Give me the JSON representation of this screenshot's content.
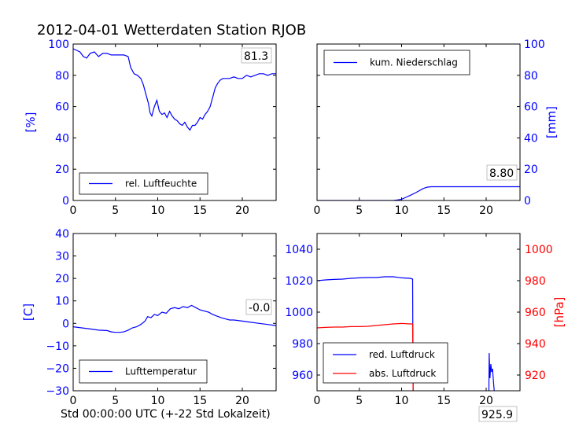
{
  "title": "2012-04-01 Wetterdaten Station RJOB",
  "x_caption": "Std 00:00:00 UTC (+-22 Std Lokalzeit)",
  "colors": {
    "axis_text": "#0000ff",
    "blue": "#0000ff",
    "red": "#ff0000",
    "frame": "#000000"
  },
  "chart_data": [
    {
      "type": "line",
      "ylabel": "[%]",
      "xlim": [
        0,
        24
      ],
      "ylim": [
        0,
        100
      ],
      "xticks": [
        0,
        5,
        10,
        15,
        20
      ],
      "yticks": [
        0,
        20,
        40,
        60,
        80,
        100
      ],
      "legend": {
        "position": "lower-left",
        "entries": [
          {
            "label": "rel. Luftfeuchte",
            "color": "#0000ff"
          }
        ]
      },
      "annotation": "81.3",
      "series": [
        {
          "name": "rel. Luftfeuchte",
          "color": "#0000ff",
          "x": [
            0,
            0.4,
            0.8,
            1.2,
            1.6,
            2.0,
            2.5,
            3.0,
            3.5,
            4.0,
            4.5,
            5.0,
            5.5,
            6.0,
            6.5,
            6.8,
            7.2,
            7.6,
            8.0,
            8.3,
            8.6,
            8.9,
            9.1,
            9.3,
            9.6,
            9.9,
            10.2,
            10.5,
            10.8,
            11.1,
            11.4,
            11.7,
            12.0,
            12.3,
            12.6,
            12.9,
            13.2,
            13.5,
            13.8,
            14.1,
            14.4,
            14.7,
            15.0,
            15.3,
            15.6,
            15.9,
            16.2,
            16.5,
            16.8,
            17.1,
            17.4,
            17.7,
            18.0,
            18.5,
            19.0,
            19.5,
            20.0,
            20.5,
            21.0,
            21.5,
            22.0,
            22.5,
            23.0,
            23.5,
            24.0
          ],
          "y": [
            97,
            96,
            95,
            92,
            91,
            94,
            95,
            92,
            94,
            94,
            93,
            93,
            93,
            93,
            92,
            85,
            81,
            80,
            78,
            74,
            68,
            62,
            56,
            54,
            60,
            64,
            57,
            55,
            56,
            53,
            57,
            54,
            52,
            51,
            49,
            48,
            50,
            47,
            45,
            48,
            48,
            50,
            53,
            52,
            55,
            57,
            60,
            66,
            72,
            75,
            77,
            78,
            78,
            78,
            79,
            78,
            78,
            80,
            79,
            80,
            81,
            81,
            80,
            81,
            81
          ]
        }
      ]
    },
    {
      "type": "line",
      "ylabel": "[mm]",
      "xlim": [
        0,
        24
      ],
      "ylim": [
        0,
        100
      ],
      "xticks": [
        0,
        5,
        10,
        15,
        20
      ],
      "yticks": [
        0,
        20,
        40,
        60,
        80,
        100
      ],
      "legend": {
        "position": "upper-left",
        "entries": [
          {
            "label": "kum. Niederschlag",
            "color": "#0000ff"
          }
        ]
      },
      "annotation": "8.80",
      "series": [
        {
          "name": "kum. Niederschlag",
          "color": "#0000ff",
          "x": [
            0,
            9.0,
            9.5,
            10.0,
            10.5,
            11.0,
            11.5,
            12.0,
            12.5,
            13.0,
            13.5,
            14.0,
            24.0
          ],
          "y": [
            0,
            0,
            0.3,
            0.8,
            2.0,
            3.2,
            4.5,
            6.0,
            7.5,
            8.5,
            8.8,
            8.8,
            8.8
          ]
        }
      ]
    },
    {
      "type": "line",
      "ylabel": "[C]",
      "xlim": [
        0,
        24
      ],
      "ylim": [
        -30,
        40
      ],
      "xticks": [
        0,
        5,
        10,
        15,
        20
      ],
      "yticks": [
        -30,
        -20,
        -10,
        0,
        10,
        20,
        30,
        40
      ],
      "legend": {
        "position": "lower-left",
        "entries": [
          {
            "label": "Lufttemperatur",
            "color": "#0000ff"
          }
        ]
      },
      "annotation": "-0.0",
      "series": [
        {
          "name": "Lufttemperatur",
          "color": "#0000ff",
          "x": [
            0,
            1,
            2,
            3,
            4,
            4.5,
            5,
            5.5,
            6,
            6.5,
            7,
            7.5,
            8,
            8.5,
            8.8,
            9.2,
            9.6,
            10,
            10.5,
            11,
            11.5,
            12,
            12.5,
            13,
            13.5,
            14,
            14.5,
            15,
            15.5,
            16,
            16.5,
            17,
            17.5,
            18,
            18.5,
            19,
            20,
            21,
            22,
            23,
            24
          ],
          "y": [
            -1.5,
            -2,
            -2.5,
            -3,
            -3.2,
            -3.8,
            -4,
            -4,
            -3.8,
            -3,
            -2,
            -1.5,
            -0.5,
            1,
            3,
            2.5,
            4,
            3.5,
            5,
            4.5,
            6.5,
            7,
            6.5,
            7.5,
            7,
            8,
            7,
            6,
            5.5,
            5,
            4,
            3.2,
            2.5,
            2,
            1.5,
            1.5,
            1,
            0.5,
            0,
            -0.5,
            -1
          ]
        }
      ]
    },
    {
      "type": "line",
      "ylabel": "[hPa]",
      "xlim": [
        0,
        24
      ],
      "ylim": [
        950,
        1050
      ],
      "y2lim": [
        910,
        1010
      ],
      "xticks": [
        0,
        5,
        10,
        15,
        20
      ],
      "yticks": [
        960,
        980,
        1000,
        1020,
        1040
      ],
      "y2ticks": [
        920,
        940,
        960,
        980,
        1000
      ],
      "legend": {
        "position": "lower-left",
        "entries": [
          {
            "label": "red. Luftdruck",
            "color": "#0000ff"
          },
          {
            "label": "abs. Luftdruck",
            "color": "#ff0000"
          }
        ]
      },
      "annotation": "925.9",
      "series": [
        {
          "name": "red. Luftdruck",
          "color": "#0000ff",
          "axis": "left",
          "x": [
            0,
            1,
            2,
            3,
            4,
            5,
            6,
            7,
            8,
            9,
            10,
            11,
            11.3,
            11.35,
            11.4
          ],
          "y": [
            1020,
            1020.5,
            1020.8,
            1021,
            1021.5,
            1021.8,
            1022,
            1022,
            1022.5,
            1022.5,
            1021.8,
            1021.5,
            1021,
            960,
            920
          ]
        },
        {
          "name": "",
          "color": "#0000ff",
          "axis": "left",
          "x": [
            20.3,
            20.35,
            20.45,
            20.55,
            20.65,
            20.75,
            20.85,
            20.95,
            21.05
          ],
          "y": [
            930,
            974,
            958,
            967,
            962,
            964,
            957,
            950,
            940
          ]
        },
        {
          "name": "abs. Luftdruck",
          "color": "#ff0000",
          "axis": "right",
          "x": [
            0,
            1,
            2,
            3,
            4,
            5,
            6,
            7,
            8,
            9,
            10,
            11,
            11.3,
            11.35,
            11.4
          ],
          "y": [
            950,
            950.3,
            950.5,
            950.5,
            950.8,
            950.8,
            951,
            951.5,
            952,
            952.5,
            952.8,
            952.5,
            952.5,
            920,
            890
          ]
        }
      ]
    }
  ]
}
